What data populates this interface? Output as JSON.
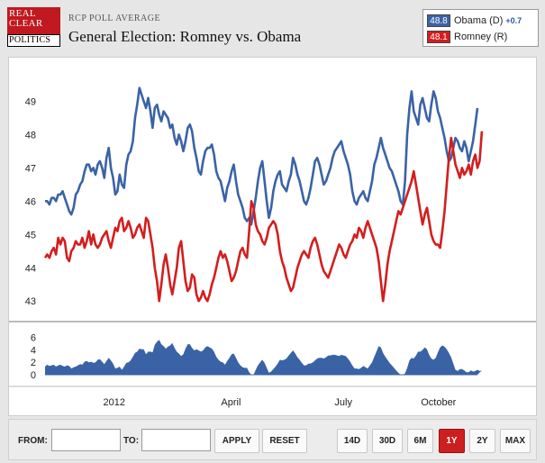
{
  "header": {
    "logo_lines": [
      "REAL",
      "CLEAR",
      "POLITICS"
    ],
    "subtitle": "RCP POLL AVERAGE",
    "title": "General Election: Romney vs. Obama"
  },
  "legend": {
    "obama": {
      "value": "48.8",
      "label": "Obama (D)",
      "change": "+0.7",
      "color": "#3a63a6"
    },
    "romney": {
      "value": "48.1",
      "label": "Romney (R)",
      "color": "#d31e1e"
    }
  },
  "chart_data": {
    "type": "line",
    "title": "General Election: Romney vs. Obama",
    "x_labels": [
      "2012",
      "April",
      "July",
      "October"
    ],
    "x_label_positions": [
      0.16,
      0.43,
      0.69,
      0.91
    ],
    "main_panel": {
      "ylim": [
        42.6,
        49.5
      ],
      "yticks": [
        43,
        44,
        45,
        46,
        47,
        48,
        49
      ],
      "series": [
        {
          "name": "Obama (D)",
          "color": "#3a63a6",
          "values": [
            46.0,
            46.0,
            45.9,
            46.1,
            46.1,
            46.0,
            46.2,
            46.2,
            46.3,
            46.1,
            45.9,
            45.7,
            45.6,
            45.8,
            46.2,
            46.3,
            46.5,
            46.6,
            46.9,
            47.1,
            47.1,
            46.9,
            47.0,
            46.8,
            47.1,
            47.2,
            47.0,
            46.7,
            47.3,
            47.6,
            47.0,
            46.7,
            46.2,
            46.3,
            46.8,
            46.5,
            46.4,
            47.1,
            47.4,
            47.5,
            47.8,
            48.5,
            48.9,
            49.4,
            49.2,
            49.0,
            48.8,
            49.1,
            48.7,
            48.2,
            48.8,
            48.9,
            48.6,
            48.4,
            48.7,
            48.6,
            48.5,
            48.2,
            48.3,
            47.9,
            47.7,
            48.0,
            47.8,
            47.5,
            47.8,
            48.2,
            48.3,
            48.1,
            47.6,
            47.3,
            46.9,
            46.8,
            47.2,
            47.5,
            47.6,
            47.6,
            47.7,
            47.4,
            46.9,
            46.7,
            46.6,
            46.3,
            46.0,
            46.4,
            46.6,
            46.9,
            47.1,
            46.6,
            46.2,
            46.0,
            45.8,
            45.5,
            45.4,
            45.5,
            45.3,
            45.7,
            46.1,
            46.6,
            47.0,
            47.2,
            46.6,
            46.0,
            45.5,
            45.8,
            46.3,
            46.6,
            46.8,
            46.9,
            46.5,
            46.4,
            46.3,
            46.6,
            46.8,
            47.3,
            47.1,
            46.8,
            46.6,
            46.3,
            46.0,
            45.9,
            46.1,
            46.4,
            46.8,
            47.2,
            47.3,
            47.1,
            46.8,
            46.5,
            46.6,
            46.8,
            47.0,
            47.3,
            47.5,
            47.6,
            47.7,
            47.8,
            47.5,
            47.3,
            47.1,
            46.8,
            46.3,
            46.0,
            45.9,
            46.1,
            46.2,
            46.3,
            46.1,
            46.0,
            46.3,
            46.6,
            47.1,
            47.3,
            47.6,
            47.9,
            47.6,
            47.4,
            47.2,
            47.0,
            46.9,
            46.7,
            46.5,
            46.3,
            46.0,
            45.9,
            46.6,
            48.0,
            48.8,
            49.3,
            48.7,
            48.5,
            48.3,
            48.9,
            49.1,
            48.8,
            48.5,
            48.4,
            48.9,
            49.3,
            49.1,
            48.7,
            48.5,
            48.2,
            47.9,
            47.5,
            47.2,
            47.3,
            47.6,
            47.9,
            47.8,
            47.6,
            47.5,
            47.8,
            47.6,
            47.2,
            47.5,
            47.8,
            48.3,
            48.8
          ]
        },
        {
          "name": "Romney (R)",
          "color": "#d31e1e",
          "values": [
            44.3,
            44.4,
            44.3,
            44.5,
            44.6,
            44.4,
            44.9,
            44.7,
            44.9,
            44.8,
            44.3,
            44.2,
            44.5,
            44.6,
            44.8,
            44.7,
            44.7,
            44.9,
            44.6,
            44.8,
            45.1,
            44.7,
            45.0,
            44.7,
            44.6,
            44.7,
            44.9,
            45.0,
            45.1,
            44.8,
            44.6,
            44.9,
            45.2,
            45.1,
            45.4,
            45.5,
            45.1,
            45.2,
            45.4,
            45.2,
            44.9,
            45.0,
            45.2,
            45.3,
            45.1,
            44.9,
            45.5,
            45.4,
            45.0,
            44.6,
            44.0,
            43.6,
            43.0,
            43.5,
            44.1,
            44.4,
            44.0,
            43.5,
            43.2,
            43.6,
            44.0,
            44.6,
            44.8,
            44.2,
            43.6,
            43.3,
            43.4,
            43.8,
            43.7,
            43.2,
            43.0,
            43.1,
            43.3,
            43.1,
            43.0,
            43.2,
            43.5,
            43.7,
            44.0,
            44.3,
            44.5,
            44.3,
            44.4,
            44.2,
            43.9,
            43.6,
            43.7,
            43.9,
            44.2,
            44.5,
            44.6,
            44.4,
            44.3,
            45.1,
            46.0,
            45.8,
            45.3,
            45.1,
            45.0,
            44.8,
            44.7,
            44.9,
            45.2,
            45.3,
            45.4,
            45.3,
            45.0,
            44.5,
            44.2,
            44.0,
            43.7,
            43.5,
            43.3,
            43.4,
            43.7,
            44.0,
            44.2,
            44.4,
            44.5,
            44.4,
            44.3,
            44.6,
            44.8,
            44.9,
            44.7,
            44.4,
            44.1,
            43.9,
            43.8,
            43.7,
            43.9,
            44.1,
            44.3,
            44.5,
            44.7,
            44.6,
            44.4,
            44.3,
            44.5,
            44.7,
            44.8,
            45.0,
            44.9,
            45.2,
            45.1,
            44.9,
            45.2,
            45.4,
            45.2,
            45.0,
            44.8,
            44.6,
            44.2,
            43.6,
            43.0,
            43.5,
            44.1,
            44.5,
            44.8,
            45.1,
            45.4,
            45.7,
            45.6,
            45.8,
            46.0,
            46.2,
            46.4,
            46.6,
            46.9,
            46.5,
            46.1,
            45.7,
            45.3,
            45.6,
            45.8,
            45.4,
            45.0,
            44.8,
            44.7,
            44.7,
            44.6,
            45.1,
            45.7,
            46.5,
            47.3,
            47.9,
            47.5,
            47.1,
            46.9,
            46.7,
            47.0,
            46.8,
            46.9,
            47.1,
            46.8,
            47.2,
            47.4,
            47.0,
            47.2,
            48.1
          ]
        }
      ]
    },
    "spread_panel": {
      "ylim": [
        0,
        6.8
      ],
      "yticks": [
        0,
        2,
        4,
        6
      ],
      "color": "#3a63a6",
      "values": [
        1.3,
        1.6,
        1.4,
        1.5,
        1.6,
        1.3,
        1.5,
        1.6,
        1.4,
        1.3,
        1.5,
        1.4,
        1.0,
        1.2,
        1.3,
        1.5,
        1.7,
        1.6,
        2.1,
        2.2,
        2.0,
        2.1,
        1.9,
        2.0,
        2.4,
        2.5,
        2.1,
        1.7,
        2.2,
        2.7,
        2.3,
        1.8,
        1.0,
        1.1,
        1.3,
        0.8,
        1.3,
        1.9,
        2.0,
        2.3,
        2.9,
        3.5,
        3.7,
        4.2,
        4.1,
        4.1,
        3.3,
        3.7,
        3.7,
        3.6,
        4.8,
        5.3,
        5.6,
        4.9,
        4.6,
        4.2,
        4.5,
        4.7,
        5.1,
        4.3,
        3.7,
        3.4,
        3.0,
        3.3,
        4.2,
        4.9,
        4.9,
        4.3,
        3.9,
        4.1,
        3.9,
        3.7,
        3.9,
        4.4,
        4.6,
        4.4,
        4.2,
        3.7,
        2.9,
        2.4,
        2.1,
        2.0,
        1.6,
        2.2,
        2.7,
        3.3,
        3.4,
        2.7,
        2.0,
        1.5,
        1.2,
        1.1,
        1.1,
        0.4,
        -0.7,
        -0.1,
        0.8,
        1.5,
        2.0,
        2.4,
        1.9,
        1.1,
        0.3,
        0.5,
        0.9,
        1.3,
        1.8,
        2.4,
        2.3,
        2.4,
        2.6,
        3.1,
        3.5,
        3.9,
        3.4,
        2.8,
        2.4,
        1.9,
        1.5,
        1.5,
        1.8,
        1.8,
        2.0,
        2.3,
        2.6,
        2.7,
        2.7,
        2.6,
        2.8,
        3.1,
        3.1,
        3.2,
        3.2,
        3.1,
        3.0,
        3.2,
        3.1,
        3.0,
        2.6,
        2.1,
        1.5,
        1.0,
        1.0,
        0.9,
        1.1,
        1.4,
        1.2,
        1.0,
        1.5,
        2.0,
        2.9,
        3.7,
        4.6,
        4.4,
        3.5,
        2.9,
        2.4,
        1.9,
        1.5,
        1.1,
        0.7,
        0.3,
        -0.4,
        -0.7,
        0.2,
        1.1,
        2.3,
        2.7,
        2.6,
        3.1,
        3.7,
        3.7,
        4.0,
        4.4,
        4.1,
        3.2,
        2.6,
        2.4,
        2.7,
        3.6,
        4.4,
        4.7,
        4.5,
        4.1,
        3.5,
        2.8,
        1.8,
        0.8,
        0.6,
        0.9,
        0.9,
        0.7,
        0.4,
        0.4,
        0.7,
        0.5,
        0.6,
        0.8,
        0.6,
        0.7
      ]
    }
  },
  "toolbar": {
    "from_label": "FROM:",
    "to_label": "TO:",
    "from_value": "",
    "to_value": "",
    "apply_label": "APPLY",
    "reset_label": "RESET",
    "ranges": [
      "14D",
      "30D",
      "6M",
      "1Y",
      "2Y",
      "MAX"
    ],
    "active_range": "1Y"
  }
}
